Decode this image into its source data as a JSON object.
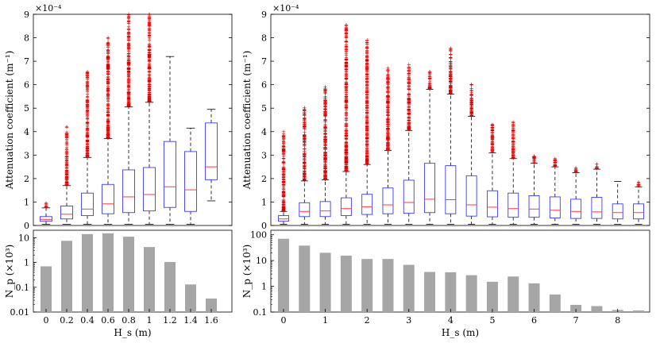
{
  "colors": {
    "box": "#3b3bf5",
    "median": "#ff3b3b",
    "whisker": "#000000",
    "outlier": "#e00000",
    "bar": "#a6a6a6"
  },
  "chart_data": [
    {
      "panel": "left",
      "type": "boxplot",
      "ylabel": "Attenuation coefficient (m⁻¹)",
      "yscale_label": "×10⁻⁴",
      "ylim": [
        0,
        9
      ],
      "yticks": [
        0,
        1,
        2,
        3,
        4,
        5,
        6,
        7,
        8,
        9
      ],
      "xlabel": "",
      "x": [
        0,
        0.2,
        0.4,
        0.6,
        0.8,
        1,
        1.2,
        1.4,
        1.6
      ],
      "boxes": [
        {
          "whislo": 0.05,
          "q1": 0.18,
          "med": 0.26,
          "q3": 0.38,
          "whishi": 0.75,
          "flier_max": 0.95
        },
        {
          "whislo": 0.05,
          "q1": 0.28,
          "med": 0.48,
          "q3": 0.83,
          "whishi": 1.7,
          "flier_max": 4.2
        },
        {
          "whislo": 0.05,
          "q1": 0.42,
          "med": 0.7,
          "q3": 1.38,
          "whishi": 2.9,
          "flier_max": 6.55
        },
        {
          "whislo": 0.05,
          "q1": 0.5,
          "med": 0.92,
          "q3": 1.75,
          "whishi": 3.7,
          "flier_max": 8.0
        },
        {
          "whislo": 0.05,
          "q1": 0.55,
          "med": 1.22,
          "q3": 2.37,
          "whishi": 5.05,
          "flier_max": 9.0
        },
        {
          "whislo": 0.05,
          "q1": 0.62,
          "med": 1.32,
          "q3": 2.47,
          "whishi": 5.25,
          "flier_max": 9.0
        },
        {
          "whislo": 0.05,
          "q1": 0.77,
          "med": 1.65,
          "q3": 3.58,
          "whishi": 7.2,
          "flier_max": null
        },
        {
          "whislo": 0.05,
          "q1": 0.6,
          "med": 1.52,
          "q3": 3.15,
          "whishi": 4.15,
          "flier_max": null
        },
        {
          "whislo": 1.05,
          "q1": 1.95,
          "med": 2.5,
          "q3": 4.37,
          "whishi": 4.95,
          "flier_max": null
        }
      ]
    },
    {
      "panel": "left-bottom",
      "type": "bar",
      "ylabel": "N_p (×10³)",
      "yscale": "log",
      "ylim": [
        0.01,
        20
      ],
      "yticks": [
        0.01,
        0.1,
        1,
        10
      ],
      "ytick_labels": [
        "0.01",
        "0.1",
        "1",
        "10"
      ],
      "xlabel": "H_s (m)",
      "categories": [
        "0",
        "0.2",
        "0.4",
        "0.6",
        "0.8",
        "1",
        "1.2",
        "1.4",
        "1.6"
      ],
      "values": [
        0.7,
        7.5,
        14,
        15,
        11,
        4.2,
        1.05,
        0.13,
        0.035
      ]
    },
    {
      "panel": "right",
      "type": "boxplot",
      "ylabel": "Attenuation coefficient (m⁻¹)",
      "yscale_label": "×10⁻⁴",
      "ylim": [
        0,
        9
      ],
      "yticks": [
        0,
        1,
        2,
        3,
        4,
        5,
        6,
        7,
        8,
        9
      ],
      "x": [
        0,
        0.5,
        1,
        1.5,
        2,
        2.5,
        3,
        3.5,
        4,
        4.5,
        5,
        5.5,
        6,
        6.5,
        7,
        7.5,
        8,
        8.5
      ],
      "boxes": [
        {
          "whislo": 0.05,
          "q1": 0.18,
          "med": 0.28,
          "q3": 0.42,
          "whishi": 0.6,
          "flier_max": 4.0
        },
        {
          "whislo": 0.05,
          "q1": 0.38,
          "med": 0.6,
          "q3": 0.97,
          "whishi": 1.9,
          "flier_max": 5.0
        },
        {
          "whislo": 0.05,
          "q1": 0.38,
          "med": 0.62,
          "q3": 1.02,
          "whishi": 1.95,
          "flier_max": 5.9
        },
        {
          "whislo": 0.05,
          "q1": 0.42,
          "med": 0.72,
          "q3": 1.18,
          "whishi": 2.3,
          "flier_max": 8.55
        },
        {
          "whislo": 0.05,
          "q1": 0.47,
          "med": 0.8,
          "q3": 1.33,
          "whishi": 2.6,
          "flier_max": 7.9
        },
        {
          "whislo": 0.05,
          "q1": 0.5,
          "med": 0.88,
          "q3": 1.6,
          "whishi": 3.2,
          "flier_max": 6.7
        },
        {
          "whislo": 0.05,
          "q1": 0.52,
          "med": 0.98,
          "q3": 1.93,
          "whishi": 4.05,
          "flier_max": 6.85
        },
        {
          "whislo": 0.05,
          "q1": 0.55,
          "med": 1.12,
          "q3": 2.65,
          "whishi": 5.8,
          "flier_max": 6.55
        },
        {
          "whislo": 0.05,
          "q1": 0.5,
          "med": 1.1,
          "q3": 2.55,
          "whishi": 5.6,
          "flier_max": 7.55
        },
        {
          "whislo": 0.05,
          "q1": 0.4,
          "med": 0.88,
          "q3": 2.12,
          "whishi": 4.65,
          "flier_max": 6.0
        },
        {
          "whislo": 0.05,
          "q1": 0.37,
          "med": 0.78,
          "q3": 1.48,
          "whishi": 3.1,
          "flier_max": 4.3
        },
        {
          "whislo": 0.05,
          "q1": 0.35,
          "med": 0.72,
          "q3": 1.38,
          "whishi": 2.85,
          "flier_max": 4.4
        },
        {
          "whislo": 0.05,
          "q1": 0.35,
          "med": 0.7,
          "q3": 1.27,
          "whishi": 2.65,
          "flier_max": 2.95
        },
        {
          "whislo": 0.05,
          "q1": 0.32,
          "med": 0.65,
          "q3": 1.22,
          "whishi": 2.5,
          "flier_max": 2.85
        },
        {
          "whislo": 0.05,
          "q1": 0.3,
          "med": 0.6,
          "q3": 1.12,
          "whishi": 2.25,
          "flier_max": 2.45
        },
        {
          "whislo": 0.05,
          "q1": 0.3,
          "med": 0.58,
          "q3": 1.2,
          "whishi": 2.4,
          "flier_max": 2.6
        },
        {
          "whislo": 0.05,
          "q1": 0.28,
          "med": 0.55,
          "q3": 0.92,
          "whishi": 1.88,
          "flier_max": null
        },
        {
          "whislo": 0.05,
          "q1": 0.28,
          "med": 0.55,
          "q3": 0.92,
          "whishi": 1.65,
          "flier_max": 1.85
        }
      ]
    },
    {
      "panel": "right-bottom",
      "type": "bar",
      "ylabel": "N_p (×10³)",
      "yscale": "log",
      "ylim": [
        0.1,
        150
      ],
      "yticks": [
        0.1,
        1,
        10,
        100
      ],
      "ytick_labels": [
        "0.1",
        "1",
        "10",
        "100"
      ],
      "xlabel": "H_s (m)",
      "x": [
        0,
        0.5,
        1,
        1.5,
        2,
        2.5,
        3,
        3.5,
        4,
        4.5,
        5,
        5.5,
        6,
        6.5,
        7,
        7.5,
        8,
        8.5
      ],
      "xticks": [
        0,
        1,
        2,
        3,
        4,
        5,
        6,
        7,
        8
      ],
      "xtick_labels": [
        "0",
        "1",
        "2",
        "3",
        "4",
        "5",
        "6",
        "7",
        "8"
      ],
      "values": [
        70,
        38,
        20,
        15.5,
        11.5,
        11.5,
        6.8,
        3.6,
        3.5,
        2.7,
        1.5,
        2.4,
        1.3,
        0.48,
        0.19,
        0.17,
        0.12,
        0.115
      ]
    }
  ]
}
